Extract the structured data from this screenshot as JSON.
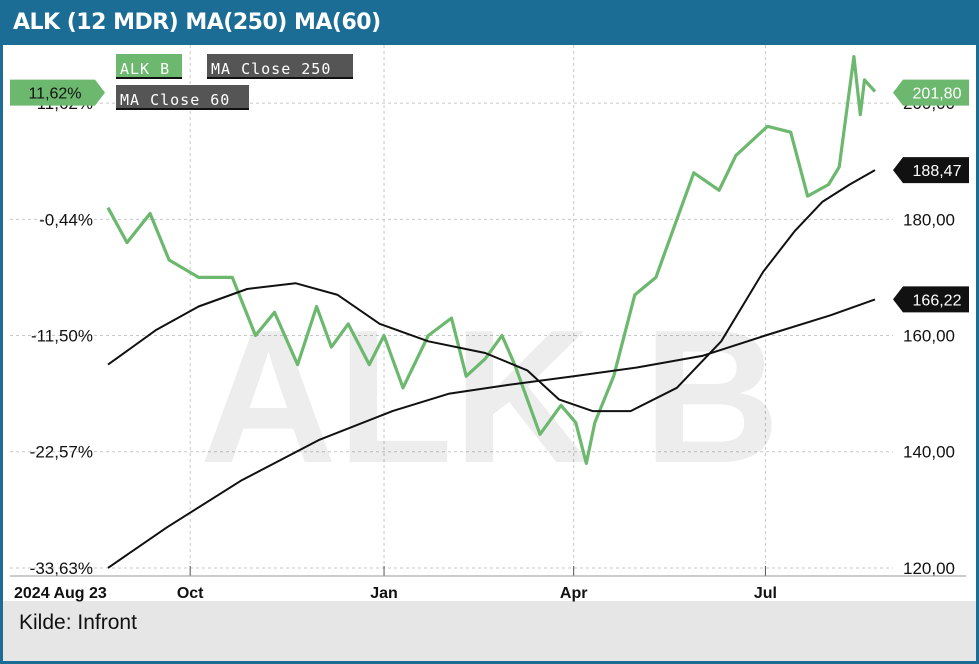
{
  "title": "ALK (12 MDR) MA(250) MA(60)",
  "source": "Kilde: Infront",
  "watermark": "ALK B",
  "colors": {
    "header_bg": "#1b6d96",
    "price": "#6cb86e",
    "ma": "#111111",
    "legend_ma_bg": "#555555"
  },
  "chart_data": {
    "type": "line",
    "x_tick_labels": [
      "2024 Aug 23",
      "Oct",
      "Jan",
      "Apr",
      "Jul"
    ],
    "x_range": [
      "2024-08-23",
      "2025-08-22"
    ],
    "y_right": {
      "ticks": [
        120,
        140,
        160,
        180,
        200
      ],
      "tick_labels": [
        "120,00",
        "140,00",
        "160,00",
        "180,00",
        "200,00"
      ],
      "range": [
        115,
        210
      ]
    },
    "y_left": {
      "tick_labels": [
        "11,62%",
        "-0,44%",
        "-11,50%",
        "-22,57%",
        "-33,63%"
      ],
      "unit": "percent change"
    },
    "grid": true,
    "legend": [
      "ALK B",
      "MA Close 250",
      "MA Close 60"
    ],
    "series": [
      {
        "name": "ALK B",
        "color": "#6cb86e",
        "x": [
          "2024-08-23",
          "2024-09-01",
          "2024-09-12",
          "2024-09-21",
          "2024-10-05",
          "2024-10-21",
          "2024-11-01",
          "2024-11-10",
          "2024-11-21",
          "2024-11-30",
          "2024-12-07",
          "2024-12-15",
          "2024-12-25",
          "2025-01-01",
          "2025-01-10",
          "2025-01-22",
          "2025-02-02",
          "2025-02-09",
          "2025-02-18",
          "2025-02-26",
          "2025-03-04",
          "2025-03-16",
          "2025-03-26",
          "2025-04-02",
          "2025-04-07",
          "2025-04-11",
          "2025-04-20",
          "2025-04-30",
          "2025-05-10",
          "2025-05-19",
          "2025-05-28",
          "2025-06-09",
          "2025-06-17",
          "2025-06-23",
          "2025-07-02",
          "2025-07-13",
          "2025-07-21",
          "2025-07-31",
          "2025-08-05",
          "2025-08-12",
          "2025-08-15",
          "2025-08-17",
          "2025-08-22"
        ],
        "values": [
          182,
          176,
          181,
          173,
          170,
          170,
          160,
          164,
          155,
          165,
          158,
          162,
          155,
          160,
          151,
          160,
          163,
          153,
          156,
          160,
          155,
          143,
          148,
          145,
          138,
          145,
          153,
          167,
          170,
          179,
          188,
          185,
          191,
          193,
          196,
          195,
          184,
          186,
          189,
          208,
          198,
          204,
          202
        ]
      },
      {
        "name": "MA Close 60",
        "color": "#111111",
        "x": [
          "2024-08-23",
          "2024-09-15",
          "2024-10-05",
          "2024-10-28",
          "2024-11-20",
          "2024-12-10",
          "2024-12-30",
          "2025-01-22",
          "2025-02-18",
          "2025-03-10",
          "2025-03-25",
          "2025-04-10",
          "2025-04-28",
          "2025-05-20",
          "2025-06-10",
          "2025-06-30",
          "2025-07-15",
          "2025-07-28",
          "2025-08-10",
          "2025-08-22"
        ],
        "values": [
          155,
          161,
          165,
          168,
          169,
          167,
          162,
          159,
          157,
          154,
          149,
          147,
          147,
          151,
          159,
          171,
          178,
          183,
          186,
          188.47
        ]
      },
      {
        "name": "MA Close 250",
        "color": "#111111",
        "x": [
          "2024-08-23",
          "2024-09-20",
          "2024-10-25",
          "2024-12-01",
          "2025-01-05",
          "2025-02-01",
          "2025-03-01",
          "2025-04-01",
          "2025-05-01",
          "2025-06-01",
          "2025-07-01",
          "2025-08-01",
          "2025-08-22"
        ],
        "values": [
          120,
          127,
          135,
          142,
          147,
          150,
          151.5,
          153,
          154.5,
          156.5,
          160,
          163.5,
          166.22
        ]
      }
    ],
    "last_values": [
      {
        "series": "ALK B",
        "label": "201,80",
        "value": 201.8,
        "percent_label": "11,62%"
      },
      {
        "series": "MA Close 60",
        "label": "188,47",
        "value": 188.47
      },
      {
        "series": "MA Close 250",
        "label": "166,22",
        "value": 166.22
      }
    ]
  }
}
